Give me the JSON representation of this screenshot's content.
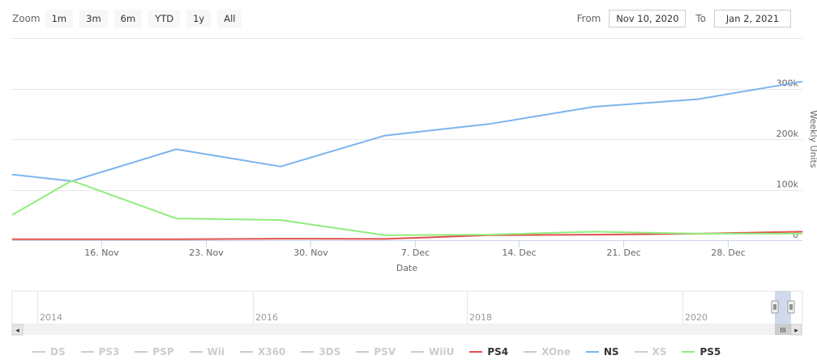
{
  "zoom": {
    "label": "Zoom",
    "buttons": [
      "1m",
      "3m",
      "6m",
      "YTD",
      "1y",
      "All"
    ]
  },
  "range": {
    "from_label": "From",
    "from_value": "Nov 10, 2020",
    "to_label": "To",
    "to_value": "Jan 2, 2021"
  },
  "colors": {
    "NS": "#7cb5ec",
    "PS4": "#e05050",
    "PS5": "#90ed7d",
    "hidden": "#cccccc",
    "grid": "#e6e6e6"
  },
  "chart_data": {
    "type": "line",
    "title": "",
    "xlabel": "Date",
    "ylabel": "Weekly Units",
    "x": [
      "2020-11-10",
      "2020-11-14",
      "2020-11-21",
      "2020-11-28",
      "2020-12-05",
      "2020-12-12",
      "2020-12-19",
      "2020-12-26",
      "2021-01-02"
    ],
    "x_ticks": [
      "16. Nov",
      "23. Nov",
      "30. Nov",
      "7. Dec",
      "14. Dec",
      "21. Dec",
      "28. Dec"
    ],
    "x_tick_dates": [
      "2020-11-16",
      "2020-11-23",
      "2020-11-30",
      "2020-12-07",
      "2020-12-14",
      "2020-12-21",
      "2020-12-28"
    ],
    "xlim": [
      "2020-11-10",
      "2021-01-02"
    ],
    "y_ticks": [
      "0",
      "100k",
      "200k",
      "300k"
    ],
    "y_tick_values": [
      0,
      100000,
      200000,
      300000
    ],
    "ylim": [
      0,
      400000
    ],
    "grid": true,
    "series": [
      {
        "name": "PS4",
        "values": [
          2000,
          2000,
          2000,
          3000,
          2500,
          10000,
          11000,
          13000,
          17000
        ]
      },
      {
        "name": "NS",
        "values": [
          130000,
          117000,
          180000,
          146000,
          207000,
          230000,
          264000,
          279000,
          314000
        ]
      },
      {
        "name": "PS5",
        "values": [
          50000,
          118000,
          43000,
          40000,
          10000,
          11000,
          17000,
          13000,
          13000
        ]
      }
    ]
  },
  "navigator": {
    "years": [
      "2014",
      "2016",
      "2018",
      "2020"
    ],
    "handle_glyph": "III",
    "left_arrow": "◂",
    "right_arrow": "▸"
  },
  "legend": [
    {
      "name": "DS",
      "visible": false
    },
    {
      "name": "PS3",
      "visible": false
    },
    {
      "name": "PSP",
      "visible": false
    },
    {
      "name": "Wii",
      "visible": false
    },
    {
      "name": "X360",
      "visible": false
    },
    {
      "name": "3DS",
      "visible": false
    },
    {
      "name": "PSV",
      "visible": false
    },
    {
      "name": "WiiU",
      "visible": false
    },
    {
      "name": "PS4",
      "visible": true
    },
    {
      "name": "XOne",
      "visible": false
    },
    {
      "name": "NS",
      "visible": true
    },
    {
      "name": "XS",
      "visible": false
    },
    {
      "name": "PS5",
      "visible": true
    }
  ]
}
